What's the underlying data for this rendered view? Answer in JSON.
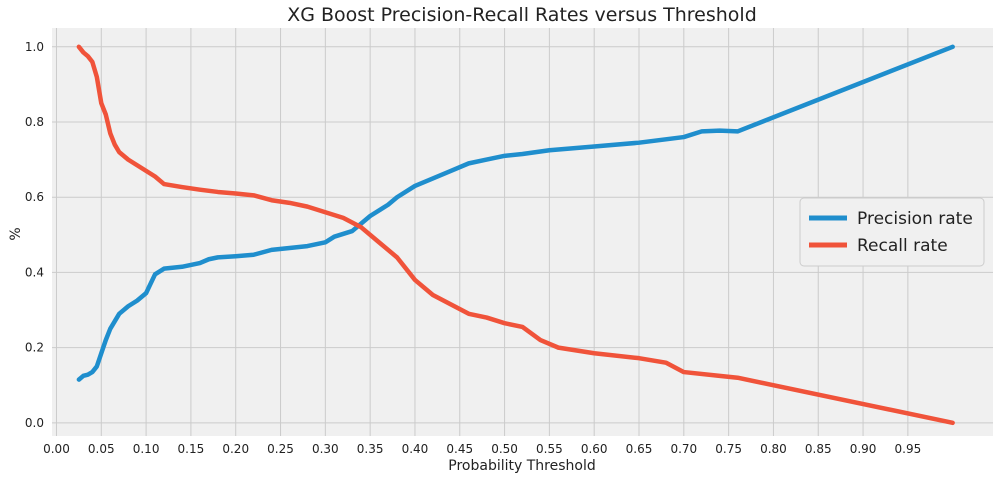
{
  "chart_data": {
    "type": "line",
    "title": "XG Boost Precision-Recall Rates versus Threshold",
    "xlabel": "Probability Threshold",
    "ylabel": "%",
    "xlim": [
      -0.005,
      1.045
    ],
    "ylim": [
      -0.035,
      1.05
    ],
    "xticks": [
      "0.00",
      "0.05",
      "0.10",
      "0.15",
      "0.20",
      "0.25",
      "0.30",
      "0.35",
      "0.40",
      "0.45",
      "0.50",
      "0.55",
      "0.60",
      "0.65",
      "0.70",
      "0.75",
      "0.80",
      "0.85",
      "0.90",
      "0.95"
    ],
    "yticks": [
      "0.0",
      "0.2",
      "0.4",
      "0.6",
      "0.8",
      "1.0"
    ],
    "grid": true,
    "legend_position": "right",
    "series": [
      {
        "name": "Precision rate",
        "color": "#1f8ecd",
        "points": [
          [
            0.025,
            0.115
          ],
          [
            0.03,
            0.125
          ],
          [
            0.035,
            0.128
          ],
          [
            0.04,
            0.135
          ],
          [
            0.045,
            0.15
          ],
          [
            0.05,
            0.185
          ],
          [
            0.055,
            0.22
          ],
          [
            0.06,
            0.25
          ],
          [
            0.065,
            0.27
          ],
          [
            0.07,
            0.29
          ],
          [
            0.08,
            0.31
          ],
          [
            0.09,
            0.325
          ],
          [
            0.1,
            0.345
          ],
          [
            0.105,
            0.37
          ],
          [
            0.11,
            0.395
          ],
          [
            0.12,
            0.41
          ],
          [
            0.14,
            0.415
          ],
          [
            0.16,
            0.425
          ],
          [
            0.17,
            0.435
          ],
          [
            0.18,
            0.44
          ],
          [
            0.2,
            0.443
          ],
          [
            0.22,
            0.447
          ],
          [
            0.24,
            0.46
          ],
          [
            0.26,
            0.465
          ],
          [
            0.28,
            0.47
          ],
          [
            0.3,
            0.48
          ],
          [
            0.31,
            0.495
          ],
          [
            0.33,
            0.51
          ],
          [
            0.35,
            0.55
          ],
          [
            0.37,
            0.58
          ],
          [
            0.38,
            0.6
          ],
          [
            0.4,
            0.63
          ],
          [
            0.42,
            0.65
          ],
          [
            0.44,
            0.67
          ],
          [
            0.46,
            0.69
          ],
          [
            0.48,
            0.7
          ],
          [
            0.5,
            0.71
          ],
          [
            0.52,
            0.715
          ],
          [
            0.55,
            0.725
          ],
          [
            0.6,
            0.735
          ],
          [
            0.65,
            0.745
          ],
          [
            0.7,
            0.76
          ],
          [
            0.72,
            0.775
          ],
          [
            0.74,
            0.777
          ],
          [
            0.76,
            0.775
          ],
          [
            1.0,
            1.0
          ]
        ]
      },
      {
        "name": "Recall rate",
        "color": "#f0533a",
        "points": [
          [
            0.025,
            1.0
          ],
          [
            0.03,
            0.985
          ],
          [
            0.035,
            0.975
          ],
          [
            0.04,
            0.96
          ],
          [
            0.045,
            0.92
          ],
          [
            0.05,
            0.85
          ],
          [
            0.055,
            0.82
          ],
          [
            0.06,
            0.77
          ],
          [
            0.065,
            0.74
          ],
          [
            0.07,
            0.72
          ],
          [
            0.08,
            0.7
          ],
          [
            0.09,
            0.685
          ],
          [
            0.1,
            0.67
          ],
          [
            0.11,
            0.655
          ],
          [
            0.12,
            0.635
          ],
          [
            0.14,
            0.627
          ],
          [
            0.16,
            0.62
          ],
          [
            0.18,
            0.614
          ],
          [
            0.2,
            0.61
          ],
          [
            0.22,
            0.605
          ],
          [
            0.24,
            0.592
          ],
          [
            0.26,
            0.585
          ],
          [
            0.28,
            0.575
          ],
          [
            0.3,
            0.56
          ],
          [
            0.32,
            0.545
          ],
          [
            0.34,
            0.52
          ],
          [
            0.36,
            0.48
          ],
          [
            0.38,
            0.44
          ],
          [
            0.4,
            0.38
          ],
          [
            0.42,
            0.34
          ],
          [
            0.44,
            0.315
          ],
          [
            0.46,
            0.29
          ],
          [
            0.48,
            0.28
          ],
          [
            0.5,
            0.265
          ],
          [
            0.52,
            0.255
          ],
          [
            0.54,
            0.22
          ],
          [
            0.56,
            0.2
          ],
          [
            0.6,
            0.185
          ],
          [
            0.65,
            0.172
          ],
          [
            0.68,
            0.16
          ],
          [
            0.7,
            0.135
          ],
          [
            0.74,
            0.125
          ],
          [
            0.76,
            0.12
          ],
          [
            1.0,
            0.0
          ]
        ]
      }
    ]
  }
}
